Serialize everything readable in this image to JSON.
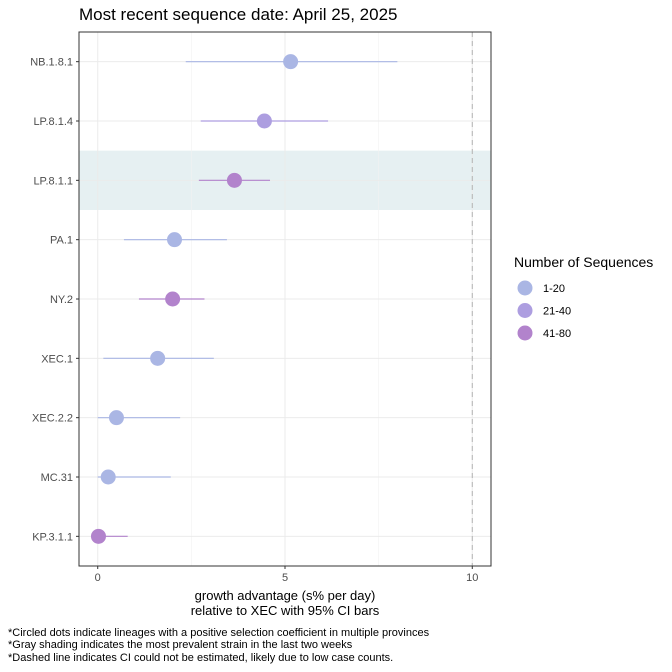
{
  "chart_data": {
    "type": "scatter",
    "title": "Most recent sequence date: April 25, 2025",
    "xlabel_line1": "growth advantage (s% per day)",
    "xlabel_line2": "relative to  XEC  with 95% CI bars",
    "xlim": [
      -0.5,
      10.5
    ],
    "xticks": [
      0,
      5,
      10
    ],
    "dashed_line_x": 10,
    "grid": true,
    "legend": {
      "title": "Number of Sequences",
      "placement": "right",
      "entries": [
        {
          "label": "1-20",
          "color": "#aab6e4"
        },
        {
          "label": "21-40",
          "color": "#ad9ee0"
        },
        {
          "label": "41-80",
          "color": "#b283cc"
        }
      ]
    },
    "shaded_category": "LP.8.1.1",
    "shade_color": "#e6f0f2",
    "points": [
      {
        "lineage": "NB.1.8.1",
        "value": 5.15,
        "ci_low": 2.35,
        "ci_high": 8.0,
        "group": 0
      },
      {
        "lineage": "LP.8.1.4",
        "value": 4.45,
        "ci_low": 2.75,
        "ci_high": 6.15,
        "group": 1
      },
      {
        "lineage": "LP.8.1.1",
        "value": 3.65,
        "ci_low": 2.7,
        "ci_high": 4.6,
        "group": 2
      },
      {
        "lineage": "PA.1",
        "value": 2.05,
        "ci_low": 0.7,
        "ci_high": 3.45,
        "group": 0
      },
      {
        "lineage": "NY.2",
        "value": 2.0,
        "ci_low": 1.1,
        "ci_high": 2.85,
        "group": 2
      },
      {
        "lineage": "XEC.1",
        "value": 1.6,
        "ci_low": 0.15,
        "ci_high": 3.1,
        "group": 0
      },
      {
        "lineage": "XEC.2.2",
        "value": 0.5,
        "ci_low": 0.0,
        "ci_high": 2.2,
        "group": 0
      },
      {
        "lineage": "MC.31",
        "value": 0.28,
        "ci_low": 0.0,
        "ci_high": 1.95,
        "group": 0
      },
      {
        "lineage": "KP.3.1.1",
        "value": 0.02,
        "ci_low": 0.0,
        "ci_high": 0.8,
        "group": 2
      }
    ]
  },
  "footnotes": [
    "*Circled dots indicate lineages with a positive selection coefficient in multiple provinces",
    "*Gray shading indicates the most prevalent strain in the last two weeks",
    "*Dashed line indicates CI could not be estimated, likely due to low case counts."
  ]
}
